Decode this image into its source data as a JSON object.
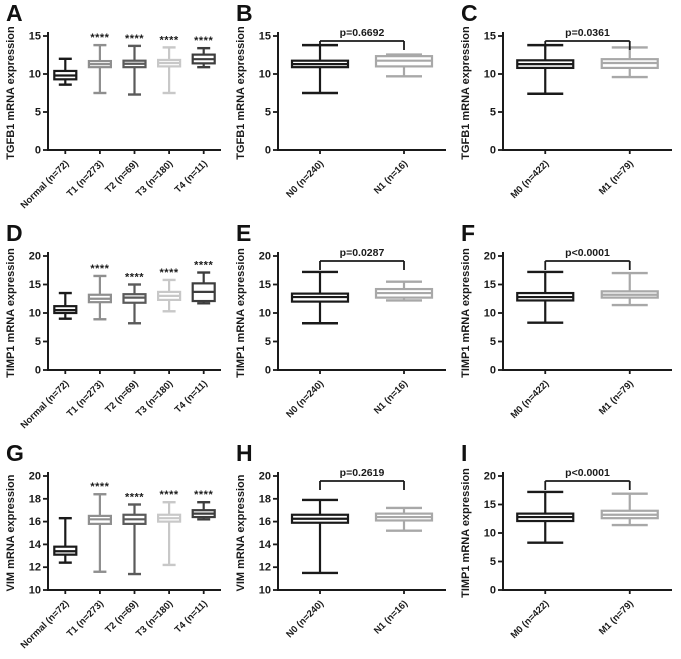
{
  "figure": {
    "background": "#ffffff",
    "axis_color": "#1a1a1a"
  },
  "chart_data": [
    {
      "type": "box",
      "panel": "A",
      "ylabel": "TGFB1 mRNA expression",
      "ylim": [
        0,
        15
      ],
      "yticks": [
        0,
        5,
        10,
        15
      ],
      "categories": [
        "Normal (n=72)",
        "T1 (n=273)",
        "T2 (n=69)",
        "T3 (n=180)",
        "T4 (n=11)"
      ],
      "colors": [
        "#1a1a1a",
        "#8f8f8f",
        "#5a5a5a",
        "#c8c8c8",
        "#3d3d3d"
      ],
      "boxes": [
        {
          "low": 8.6,
          "q1": 9.3,
          "median": 9.8,
          "q3": 10.4,
          "high": 12.0,
          "sig": ""
        },
        {
          "low": 7.5,
          "q1": 10.9,
          "median": 11.3,
          "q3": 11.7,
          "high": 13.8,
          "sig": "****"
        },
        {
          "low": 7.3,
          "q1": 10.9,
          "median": 11.35,
          "q3": 11.75,
          "high": 13.7,
          "sig": "****"
        },
        {
          "low": 7.5,
          "q1": 11.0,
          "median": 11.45,
          "q3": 11.85,
          "high": 13.5,
          "sig": "****"
        },
        {
          "low": 10.9,
          "q1": 11.4,
          "median": 11.95,
          "q3": 12.55,
          "high": 13.4,
          "sig": "****"
        }
      ]
    },
    {
      "type": "box",
      "panel": "B",
      "ylabel": "TGFB1 mRNA expression",
      "ylim": [
        0,
        15
      ],
      "yticks": [
        0,
        5,
        10,
        15
      ],
      "categories": [
        "N0 (n=240)",
        "N1 (n=16)"
      ],
      "colors": [
        "#1a1a1a",
        "#a8a8a8"
      ],
      "p_label": "p=0.6692",
      "boxes": [
        {
          "low": 7.5,
          "q1": 10.9,
          "median": 11.3,
          "q3": 11.75,
          "high": 13.8,
          "sig": ""
        },
        {
          "low": 9.7,
          "q1": 11.0,
          "median": 11.75,
          "q3": 12.35,
          "high": 12.55,
          "sig": ""
        }
      ]
    },
    {
      "type": "box",
      "panel": "C",
      "ylabel": "TGFB1 mRNA expression",
      "ylim": [
        0,
        15
      ],
      "yticks": [
        0,
        5,
        10,
        15
      ],
      "categories": [
        "M0 (n=422)",
        "M1 (n=79)"
      ],
      "colors": [
        "#1a1a1a",
        "#a8a8a8"
      ],
      "p_label": "p=0.0361",
      "boxes": [
        {
          "low": 7.4,
          "q1": 10.8,
          "median": 11.3,
          "q3": 11.8,
          "high": 13.8,
          "sig": ""
        },
        {
          "low": 9.6,
          "q1": 10.8,
          "median": 11.45,
          "q3": 11.95,
          "high": 13.5,
          "sig": ""
        }
      ]
    },
    {
      "type": "box",
      "panel": "D",
      "ylabel": "TIMP1 mRNA expression",
      "ylim": [
        0,
        20
      ],
      "yticks": [
        0,
        5,
        10,
        15,
        20
      ],
      "categories": [
        "Normal (n=72)",
        "T1 (n=273)",
        "T2 (n=69)",
        "T3 (n=180)",
        "T4 (n=11)"
      ],
      "colors": [
        "#1a1a1a",
        "#8f8f8f",
        "#5a5a5a",
        "#c8c8c8",
        "#3d3d3d"
      ],
      "boxes": [
        {
          "low": 9.0,
          "q1": 10.0,
          "median": 10.5,
          "q3": 11.2,
          "high": 13.5,
          "sig": ""
        },
        {
          "low": 8.9,
          "q1": 11.9,
          "median": 12.5,
          "q3": 13.2,
          "high": 16.5,
          "sig": "****"
        },
        {
          "low": 8.2,
          "q1": 11.8,
          "median": 12.7,
          "q3": 13.3,
          "high": 15.0,
          "sig": "****"
        },
        {
          "low": 10.3,
          "q1": 12.3,
          "median": 13.0,
          "q3": 13.7,
          "high": 15.8,
          "sig": "****"
        },
        {
          "low": 11.7,
          "q1": 12.1,
          "median": 13.7,
          "q3": 15.2,
          "high": 17.1,
          "sig": "****"
        }
      ]
    },
    {
      "type": "box",
      "panel": "E",
      "ylabel": "TIMP1 mRNA expression",
      "ylim": [
        0,
        20
      ],
      "yticks": [
        0,
        5,
        10,
        15,
        20
      ],
      "categories": [
        "N0 (n=240)",
        "N1 (n=16)"
      ],
      "colors": [
        "#1a1a1a",
        "#a8a8a8"
      ],
      "p_label": "p=0.0287",
      "boxes": [
        {
          "low": 8.2,
          "q1": 12.0,
          "median": 12.8,
          "q3": 13.4,
          "high": 17.2,
          "sig": ""
        },
        {
          "low": 12.2,
          "q1": 12.7,
          "median": 13.5,
          "q3": 14.2,
          "high": 15.5,
          "sig": ""
        }
      ]
    },
    {
      "type": "box",
      "panel": "F",
      "ylabel": "TIMP1 mRNA expression",
      "ylim": [
        0,
        20
      ],
      "yticks": [
        0,
        5,
        10,
        15,
        20
      ],
      "categories": [
        "M0 (n=422)",
        "M1 (n=79)"
      ],
      "colors": [
        "#1a1a1a",
        "#a8a8a8"
      ],
      "p_label": "p<0.0001",
      "boxes": [
        {
          "low": 8.3,
          "q1": 12.2,
          "median": 12.8,
          "q3": 13.5,
          "high": 17.2,
          "sig": ""
        },
        {
          "low": 11.4,
          "q1": 12.7,
          "median": 13.2,
          "q3": 13.8,
          "high": 17.0,
          "sig": ""
        }
      ]
    },
    {
      "type": "box",
      "panel": "G",
      "ylabel": "VIM mRNA expression",
      "ylim": [
        10,
        20
      ],
      "yticks": [
        10,
        12,
        14,
        16,
        18,
        20
      ],
      "categories": [
        "Normal (n=72)",
        "T1 (n=273)",
        "T2 (n=69)",
        "T3 (n=180)",
        "T4 (n=11)"
      ],
      "colors": [
        "#1a1a1a",
        "#8f8f8f",
        "#5a5a5a",
        "#c8c8c8",
        "#3d3d3d"
      ],
      "boxes": [
        {
          "low": 12.4,
          "q1": 13.1,
          "median": 13.4,
          "q3": 13.8,
          "high": 16.3,
          "sig": ""
        },
        {
          "low": 11.6,
          "q1": 15.8,
          "median": 16.2,
          "q3": 16.5,
          "high": 18.4,
          "sig": "****"
        },
        {
          "low": 11.4,
          "q1": 15.8,
          "median": 16.2,
          "q3": 16.6,
          "high": 17.5,
          "sig": "****"
        },
        {
          "low": 12.2,
          "q1": 16.0,
          "median": 16.3,
          "q3": 16.6,
          "high": 17.7,
          "sig": "****"
        },
        {
          "low": 16.2,
          "q1": 16.4,
          "median": 16.7,
          "q3": 17.0,
          "high": 17.7,
          "sig": "****"
        }
      ]
    },
    {
      "type": "box",
      "panel": "H",
      "ylabel": "VIM mRNA expression",
      "ylim": [
        10,
        20
      ],
      "yticks": [
        10,
        12,
        14,
        16,
        18,
        20
      ],
      "categories": [
        "N0 (n=240)",
        "N1 (n=16)"
      ],
      "colors": [
        "#1a1a1a",
        "#a8a8a8"
      ],
      "p_label": "p=0.2619",
      "boxes": [
        {
          "low": 11.5,
          "q1": 15.9,
          "median": 16.25,
          "q3": 16.6,
          "high": 17.9,
          "sig": ""
        },
        {
          "low": 15.2,
          "q1": 16.1,
          "median": 16.4,
          "q3": 16.7,
          "high": 17.2,
          "sig": ""
        }
      ]
    },
    {
      "type": "box",
      "panel": "I",
      "ylabel": "TIMP1 mRNA expression",
      "ylim": [
        0,
        20
      ],
      "yticks": [
        0,
        5,
        10,
        15,
        20
      ],
      "categories": [
        "M0 (n=422)",
        "M1 (n=79)"
      ],
      "colors": [
        "#1a1a1a",
        "#a8a8a8"
      ],
      "p_label": "p<0.0001",
      "boxes": [
        {
          "low": 8.3,
          "q1": 12.1,
          "median": 12.8,
          "q3": 13.4,
          "high": 17.2,
          "sig": ""
        },
        {
          "low": 11.4,
          "q1": 12.6,
          "median": 13.2,
          "q3": 13.9,
          "high": 16.9,
          "sig": ""
        }
      ]
    }
  ]
}
